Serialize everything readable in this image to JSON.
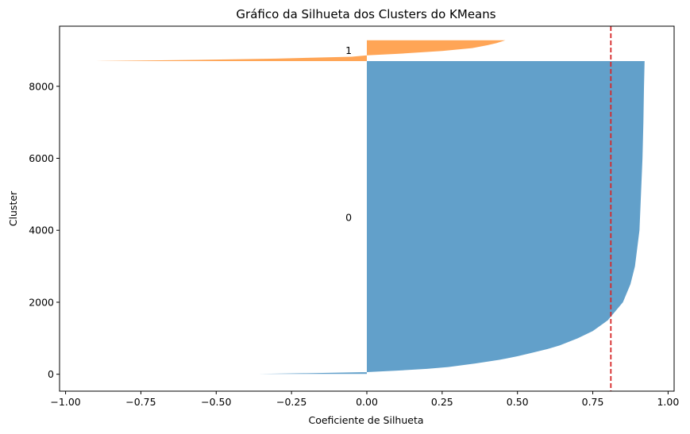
{
  "chart_data": {
    "type": "area",
    "title": "Gráfico da Silhueta dos Clusters do KMeans",
    "xlabel": "Coeficiente de Silhueta",
    "ylabel": "Cluster",
    "xlim": [
      -1.02,
      1.02
    ],
    "ylim": [
      -470,
      9670
    ],
    "xticks": [
      -1.0,
      -0.75,
      -0.5,
      -0.25,
      0.0,
      0.25,
      0.5,
      0.75,
      1.0
    ],
    "xtick_labels": [
      "−1.00",
      "−0.75",
      "−0.50",
      "−0.25",
      "0.00",
      "0.25",
      "0.50",
      "0.75",
      "1.00"
    ],
    "yticks": [
      0,
      2000,
      4000,
      6000,
      8000
    ],
    "ytick_labels": [
      "0",
      "2000",
      "4000",
      "6000",
      "8000"
    ],
    "grid": false,
    "series": [
      {
        "label": "0",
        "label_pos": [
          -0.05,
          4350
        ],
        "color": "#1f77b4",
        "opacity": 0.7,
        "y_start": 10,
        "y_end": 8700,
        "points": [
          [
            10,
            -0.36
          ],
          [
            30,
            -0.2
          ],
          [
            60,
            0.0
          ],
          [
            100,
            0.1
          ],
          [
            150,
            0.2
          ],
          [
            200,
            0.27
          ],
          [
            300,
            0.36
          ],
          [
            400,
            0.44
          ],
          [
            500,
            0.5
          ],
          [
            600,
            0.55
          ],
          [
            700,
            0.6
          ],
          [
            800,
            0.64
          ],
          [
            1000,
            0.7
          ],
          [
            1200,
            0.75
          ],
          [
            1500,
            0.8
          ],
          [
            2000,
            0.85
          ],
          [
            2500,
            0.875
          ],
          [
            3000,
            0.89
          ],
          [
            4000,
            0.905
          ],
          [
            5000,
            0.91
          ],
          [
            6000,
            0.915
          ],
          [
            7000,
            0.918
          ],
          [
            8000,
            0.92
          ],
          [
            8700,
            0.922
          ]
        ]
      },
      {
        "label": "1",
        "label_pos": [
          -0.05,
          8990
        ],
        "color": "#ff7f0e",
        "opacity": 0.7,
        "y_start": 8700,
        "y_end": 9280,
        "points": [
          [
            8700,
            -0.9
          ],
          [
            8730,
            -0.6
          ],
          [
            8770,
            -0.3
          ],
          [
            8820,
            -0.05
          ],
          [
            8860,
            0.0
          ],
          [
            8900,
            0.1
          ],
          [
            8980,
            0.25
          ],
          [
            9060,
            0.35
          ],
          [
            9140,
            0.4
          ],
          [
            9200,
            0.43
          ],
          [
            9250,
            0.45
          ],
          [
            9280,
            0.46
          ]
        ]
      }
    ],
    "reference_line": {
      "x": 0.81,
      "color": "#d62728",
      "style": "dashed"
    }
  }
}
